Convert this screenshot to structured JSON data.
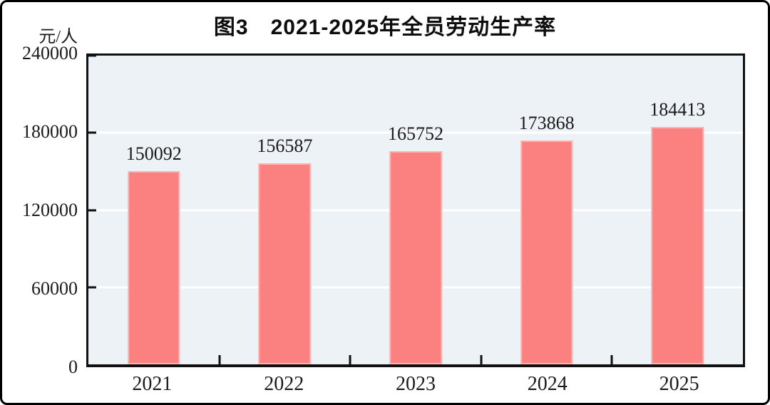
{
  "figure": {
    "title": "图3　2021-2025年全员劳动生产率",
    "unit_label": "元/人"
  },
  "chart_data": {
    "type": "bar",
    "title": "图3　2021-2025年全员劳动生产率",
    "ylabel": "元/人",
    "xlabel": "",
    "categories": [
      "2021",
      "2022",
      "2023",
      "2024",
      "2025"
    ],
    "values": [
      150092,
      156587,
      165752,
      173868,
      184413
    ],
    "ylim": [
      0,
      240000
    ],
    "yticks": [
      0,
      60000,
      120000,
      180000,
      240000
    ],
    "gridlines": [
      60000,
      120000,
      180000
    ],
    "grid": "horizontal-white",
    "legend_position": "none",
    "bar_color": "#fb8080",
    "plot_background": "#ecf2f6",
    "gridline_color": "#ffffff",
    "axis_color": "#111111",
    "text_color": "#1a1a1a"
  }
}
